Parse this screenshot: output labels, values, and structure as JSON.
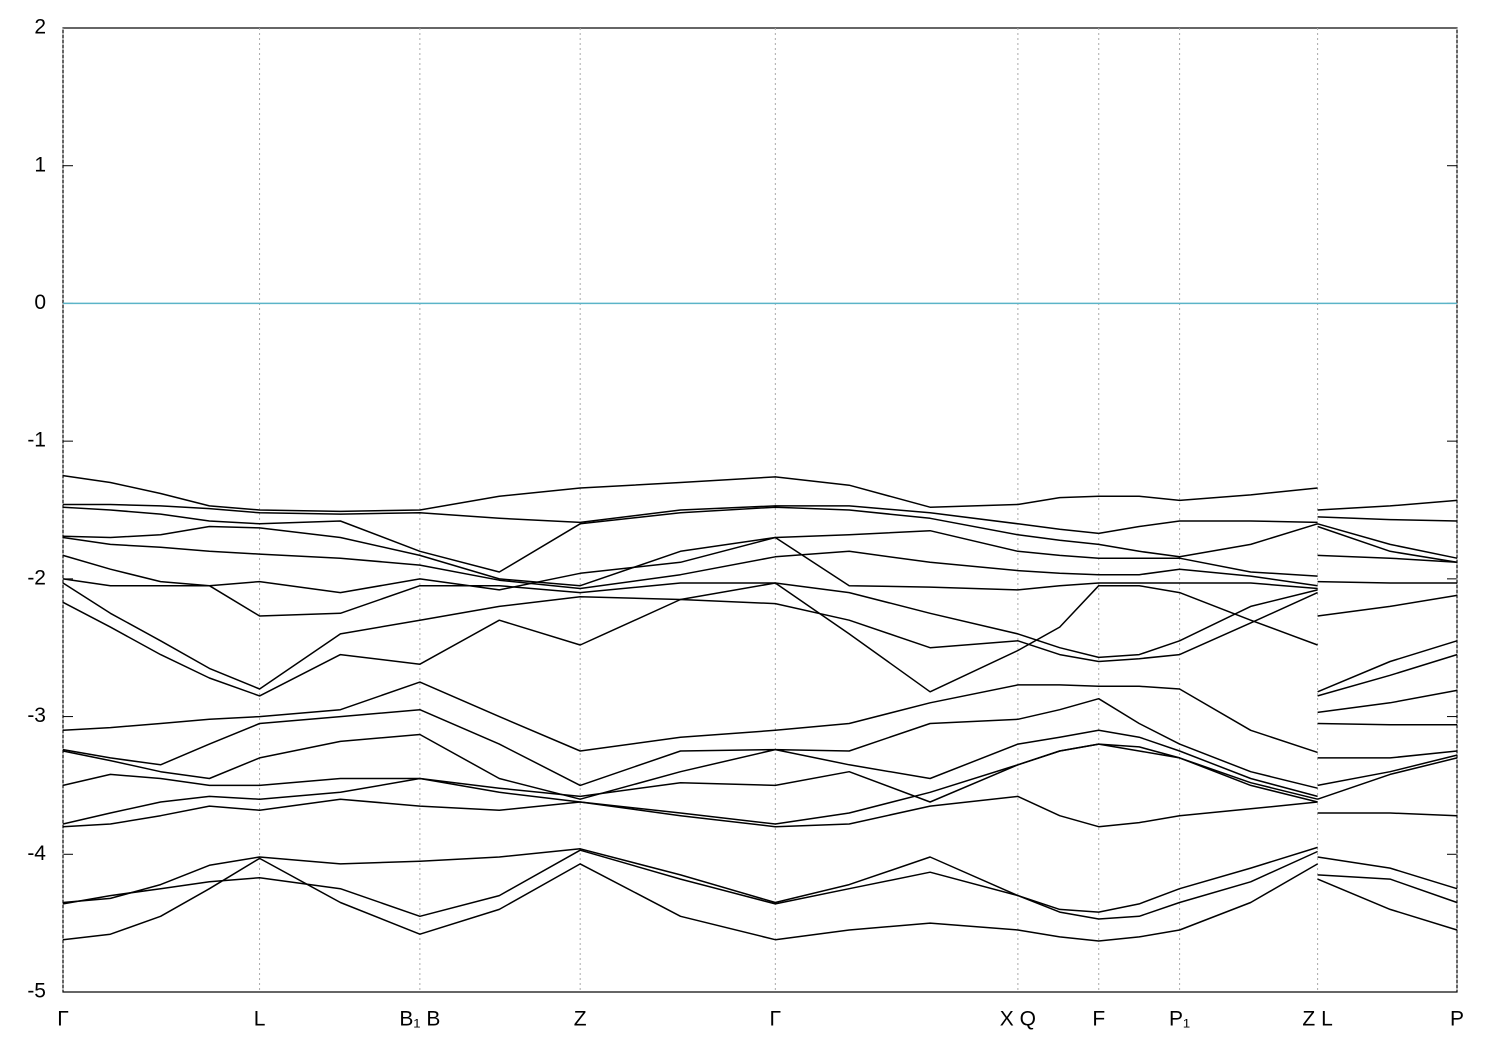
{
  "chart_data": {
    "type": "line",
    "x": [
      0,
      0.034,
      0.07,
      0.105,
      0.141,
      0.199,
      0.256,
      0.313,
      0.371,
      0.443,
      0.511,
      0.564,
      0.622,
      0.685,
      0.715,
      0.743,
      0.772,
      0.801,
      0.852,
      0.9,
      0.9,
      0.9,
      0.952,
      1
    ],
    "xlim": [
      0,
      1
    ],
    "xticks": [
      {
        "value": 0,
        "label": "Γ"
      },
      {
        "value": 0.141,
        "label": "L"
      },
      {
        "value": 0.256,
        "label": "B₁ B"
      },
      {
        "value": 0.371,
        "label": "Z"
      },
      {
        "value": 0.511,
        "label": "Γ"
      },
      {
        "value": 0.685,
        "label": "X Q"
      },
      {
        "value": 0.743,
        "label": "F"
      },
      {
        "value": 0.801,
        "label": "P₁"
      },
      {
        "value": 0.9,
        "label": "Z L"
      },
      {
        "value": 1,
        "label": "P"
      }
    ],
    "ylim": [
      -5,
      2
    ],
    "yticks": [
      -5,
      -4,
      -3,
      -2,
      -1,
      0,
      1,
      2
    ],
    "grid": true,
    "color": "#000000",
    "hlines": [
      {
        "value": 0,
        "color": "#5bb4c8"
      }
    ],
    "series": [
      {
        "values": [
          -1.25,
          -1.3,
          -1.38,
          -1.47,
          -1.5,
          -1.51,
          -1.5,
          -1.4,
          -1.34,
          -1.3,
          -1.26,
          -1.32,
          -1.48,
          -1.46,
          -1.41,
          -1.4,
          -1.4,
          -1.43,
          -1.39,
          -1.34,
          null,
          -1.5,
          -1.47,
          -1.43
        ]
      },
      {
        "values": [
          -1.46,
          -1.46,
          -1.47,
          -1.49,
          -1.52,
          -1.53,
          -1.52,
          -1.56,
          -1.59,
          -1.5,
          -1.47,
          -1.47,
          -1.52,
          -1.6,
          -1.64,
          -1.67,
          -1.62,
          -1.58,
          -1.58,
          -1.59,
          null,
          -1.55,
          -1.57,
          -1.58
        ]
      },
      {
        "values": [
          -1.48,
          -1.5,
          -1.53,
          -1.58,
          -1.6,
          -1.58,
          -1.8,
          -1.95,
          -1.6,
          -1.52,
          -1.48,
          -1.5,
          -1.56,
          -1.68,
          -1.72,
          -1.75,
          -1.8,
          -1.84,
          -1.75,
          -1.6,
          null,
          -1.6,
          -1.75,
          -1.85
        ]
      },
      {
        "values": [
          -1.69,
          -1.7,
          -1.68,
          -1.62,
          -1.63,
          -1.7,
          -1.83,
          -2.0,
          -2.05,
          -1.8,
          -1.7,
          -1.68,
          -1.65,
          -1.8,
          -1.83,
          -1.85,
          -1.85,
          -1.85,
          -1.95,
          -1.98,
          null,
          -1.62,
          -1.8,
          -1.88
        ]
      },
      {
        "values": [
          -1.7,
          -1.75,
          -1.77,
          -1.8,
          -1.82,
          -1.85,
          -1.9,
          -2.01,
          -2.07,
          -1.97,
          -1.84,
          -1.8,
          -1.88,
          -1.94,
          -1.96,
          -1.97,
          -1.97,
          -1.93,
          -1.98,
          -2.05,
          null,
          -1.83,
          -1.85,
          -1.88
        ]
      },
      {
        "values": [
          -1.83,
          -1.93,
          -2.02,
          -2.05,
          -2.02,
          -2.1,
          -2.0,
          -2.08,
          -1.96,
          -1.88,
          -1.7,
          -2.05,
          -2.06,
          -2.08,
          -2.05,
          -2.03,
          -2.03,
          -2.03,
          -2.03,
          -2.07,
          null,
          -2.02,
          -2.03,
          -2.03
        ]
      },
      {
        "values": [
          -2.0,
          -2.05,
          -2.05,
          -2.05,
          -2.27,
          -2.25,
          -2.05,
          -2.05,
          -2.1,
          -2.03,
          -2.03,
          -2.1,
          -2.25,
          -2.4,
          -2.5,
          -2.57,
          -2.55,
          -2.45,
          -2.2,
          -2.08,
          null,
          -2.27,
          -2.2,
          -2.12
        ]
      },
      {
        "values": [
          -2.03,
          -2.25,
          -2.45,
          -2.65,
          -2.8,
          -2.4,
          -2.3,
          -2.2,
          -2.13,
          -2.15,
          -2.18,
          -2.3,
          -2.5,
          -2.45,
          -2.55,
          -2.6,
          -2.58,
          -2.55,
          -2.32,
          -2.1,
          null,
          -2.82,
          -2.6,
          -2.45
        ]
      },
      {
        "values": [
          -2.17,
          -2.35,
          -2.55,
          -2.72,
          -2.85,
          -2.55,
          -2.62,
          -2.3,
          -2.48,
          -2.15,
          -2.03,
          -2.4,
          -2.82,
          -2.52,
          -2.35,
          -2.05,
          -2.05,
          -2.1,
          -2.3,
          -2.48,
          null,
          -2.85,
          -2.7,
          -2.55
        ]
      },
      {
        "values": [
          -3.1,
          -3.08,
          -3.05,
          -3.02,
          -3.0,
          -2.95,
          -2.75,
          -3.0,
          -3.25,
          -3.15,
          -3.1,
          -3.05,
          -2.9,
          -2.77,
          -2.77,
          -2.78,
          -2.78,
          -2.8,
          -3.1,
          -3.26,
          null,
          -2.97,
          -2.9,
          -2.81
        ]
      },
      {
        "values": [
          -3.24,
          -3.3,
          -3.35,
          -3.2,
          -3.05,
          -3.0,
          -2.95,
          -3.2,
          -3.5,
          -3.25,
          -3.24,
          -3.25,
          -3.05,
          -3.02,
          -2.95,
          -2.87,
          -3.05,
          -3.2,
          -3.4,
          -3.52,
          null,
          -3.05,
          -3.06,
          -3.06
        ]
      },
      {
        "values": [
          -3.25,
          -3.32,
          -3.4,
          -3.45,
          -3.3,
          -3.18,
          -3.13,
          -3.45,
          -3.6,
          -3.4,
          -3.24,
          -3.35,
          -3.45,
          -3.2,
          -3.15,
          -3.1,
          -3.15,
          -3.25,
          -3.45,
          -3.58,
          null,
          -3.3,
          -3.3,
          -3.25
        ]
      },
      {
        "values": [
          -3.5,
          -3.42,
          -3.45,
          -3.5,
          -3.5,
          -3.45,
          -3.45,
          -3.52,
          -3.58,
          -3.48,
          -3.5,
          -3.4,
          -3.62,
          -3.35,
          -3.25,
          -3.2,
          -3.25,
          -3.3,
          -3.48,
          -3.6,
          null,
          -3.5,
          -3.4,
          -3.28
        ]
      },
      {
        "values": [
          -3.78,
          -3.7,
          -3.62,
          -3.58,
          -3.6,
          -3.55,
          -3.45,
          -3.55,
          -3.62,
          -3.7,
          -3.78,
          -3.7,
          -3.55,
          -3.35,
          -3.25,
          -3.2,
          -3.22,
          -3.3,
          -3.5,
          -3.62,
          null,
          -3.6,
          -3.42,
          -3.3
        ]
      },
      {
        "values": [
          -3.8,
          -3.78,
          -3.72,
          -3.65,
          -3.68,
          -3.6,
          -3.65,
          -3.68,
          -3.62,
          -3.72,
          -3.8,
          -3.78,
          -3.65,
          -3.58,
          -3.72,
          -3.8,
          -3.77,
          -3.72,
          -3.67,
          -3.62,
          null,
          -3.7,
          -3.7,
          -3.72
        ]
      },
      {
        "values": [
          -4.35,
          -4.32,
          -4.22,
          -4.08,
          -4.02,
          -4.07,
          -4.05,
          -4.02,
          -3.96,
          -4.15,
          -4.35,
          -4.22,
          -4.02,
          -4.3,
          -4.4,
          -4.42,
          -4.36,
          -4.25,
          -4.1,
          -3.95,
          null,
          -4.02,
          -4.1,
          -4.25
        ]
      },
      {
        "values": [
          -4.36,
          -4.3,
          -4.25,
          -4.2,
          -4.17,
          -4.25,
          -4.45,
          -4.3,
          -3.97,
          -4.18,
          -4.36,
          -4.25,
          -4.13,
          -4.3,
          -4.42,
          -4.47,
          -4.45,
          -4.35,
          -4.2,
          -3.98,
          null,
          -4.15,
          -4.18,
          -4.35
        ]
      },
      {
        "values": [
          -4.62,
          -4.58,
          -4.45,
          -4.25,
          -4.03,
          -4.35,
          -4.58,
          -4.4,
          -4.07,
          -4.45,
          -4.62,
          -4.55,
          -4.5,
          -4.55,
          -4.6,
          -4.63,
          -4.6,
          -4.55,
          -4.35,
          -4.07,
          null,
          -4.18,
          -4.4,
          -4.55
        ]
      }
    ]
  }
}
